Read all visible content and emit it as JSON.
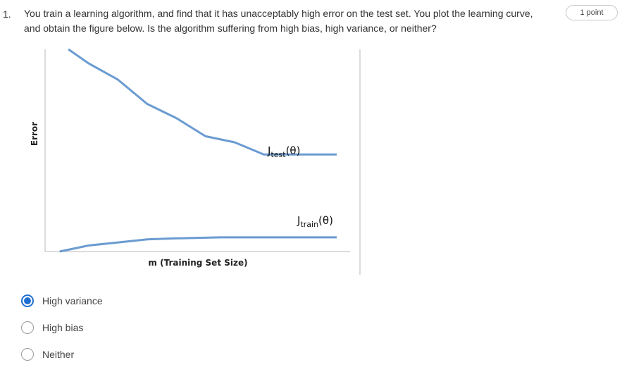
{
  "question": {
    "number": "1.",
    "text": "You train a learning algorithm, and find that it has unacceptably high error on the test set. You plot the learning curve, and obtain the figure below. Is the algorithm suffering from high bias, high variance, or neither?",
    "points": "1 point"
  },
  "options": [
    {
      "label": "High variance",
      "selected": true
    },
    {
      "label": "High bias",
      "selected": false
    },
    {
      "label": "Neither",
      "selected": false
    }
  ],
  "chart_data": {
    "type": "line",
    "xlabel": "m (Training Set Size)",
    "ylabel": "Error",
    "series": [
      {
        "name": "J_test(θ)",
        "label_main": "J",
        "label_sub": "test",
        "label_tail": "(θ)",
        "color": "#6b9bd1",
        "x": [
          0.08,
          0.15,
          0.25,
          0.35,
          0.45,
          0.55,
          0.65,
          0.75,
          0.85,
          1.0
        ],
        "y": [
          1.0,
          0.93,
          0.85,
          0.73,
          0.66,
          0.57,
          0.54,
          0.48,
          0.48,
          0.48
        ]
      },
      {
        "name": "J_train(θ)",
        "label_main": "J",
        "label_sub": "train",
        "label_tail": "(θ)",
        "color": "#6b9bd1",
        "x": [
          0.05,
          0.15,
          0.25,
          0.35,
          0.45,
          0.6,
          0.75,
          0.9,
          1.0
        ],
        "y": [
          0.0,
          0.03,
          0.045,
          0.06,
          0.065,
          0.07,
          0.07,
          0.07,
          0.07
        ]
      }
    ],
    "grid": false
  }
}
